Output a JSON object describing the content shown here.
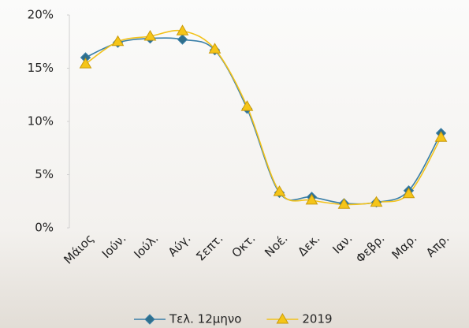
{
  "chart_data": {
    "type": "line",
    "categories": [
      "Μάιος",
      "Ιούν.",
      "Ιούλ.",
      "Αύγ.",
      "Σεπτ.",
      "Οκτ.",
      "Νοέ.",
      "Δεκ.",
      "Ιαν.",
      "Φεβρ.",
      "Μαρ.",
      "Απρ."
    ],
    "series": [
      {
        "name": "Τελ. 12μηνο",
        "color": "#3a7fa8",
        "marker": "diamond",
        "values": [
          16.0,
          17.4,
          17.8,
          17.7,
          16.7,
          11.2,
          3.3,
          2.9,
          2.3,
          2.4,
          3.5,
          8.9
        ]
      },
      {
        "name": "2019",
        "color": "#f2c21b",
        "marker": "triangle",
        "values": [
          15.4,
          17.5,
          18.0,
          18.5,
          16.8,
          11.4,
          3.4,
          2.6,
          2.2,
          2.4,
          3.2,
          8.5
        ]
      }
    ],
    "ylim": [
      0,
      20
    ],
    "yticks": [
      {
        "value": 0,
        "label": "0%"
      },
      {
        "value": 5,
        "label": "5%"
      },
      {
        "value": 10,
        "label": "10%"
      },
      {
        "value": 15,
        "label": "15%"
      },
      {
        "value": 20,
        "label": "20%"
      }
    ],
    "grid": false,
    "legend": "bottom"
  }
}
